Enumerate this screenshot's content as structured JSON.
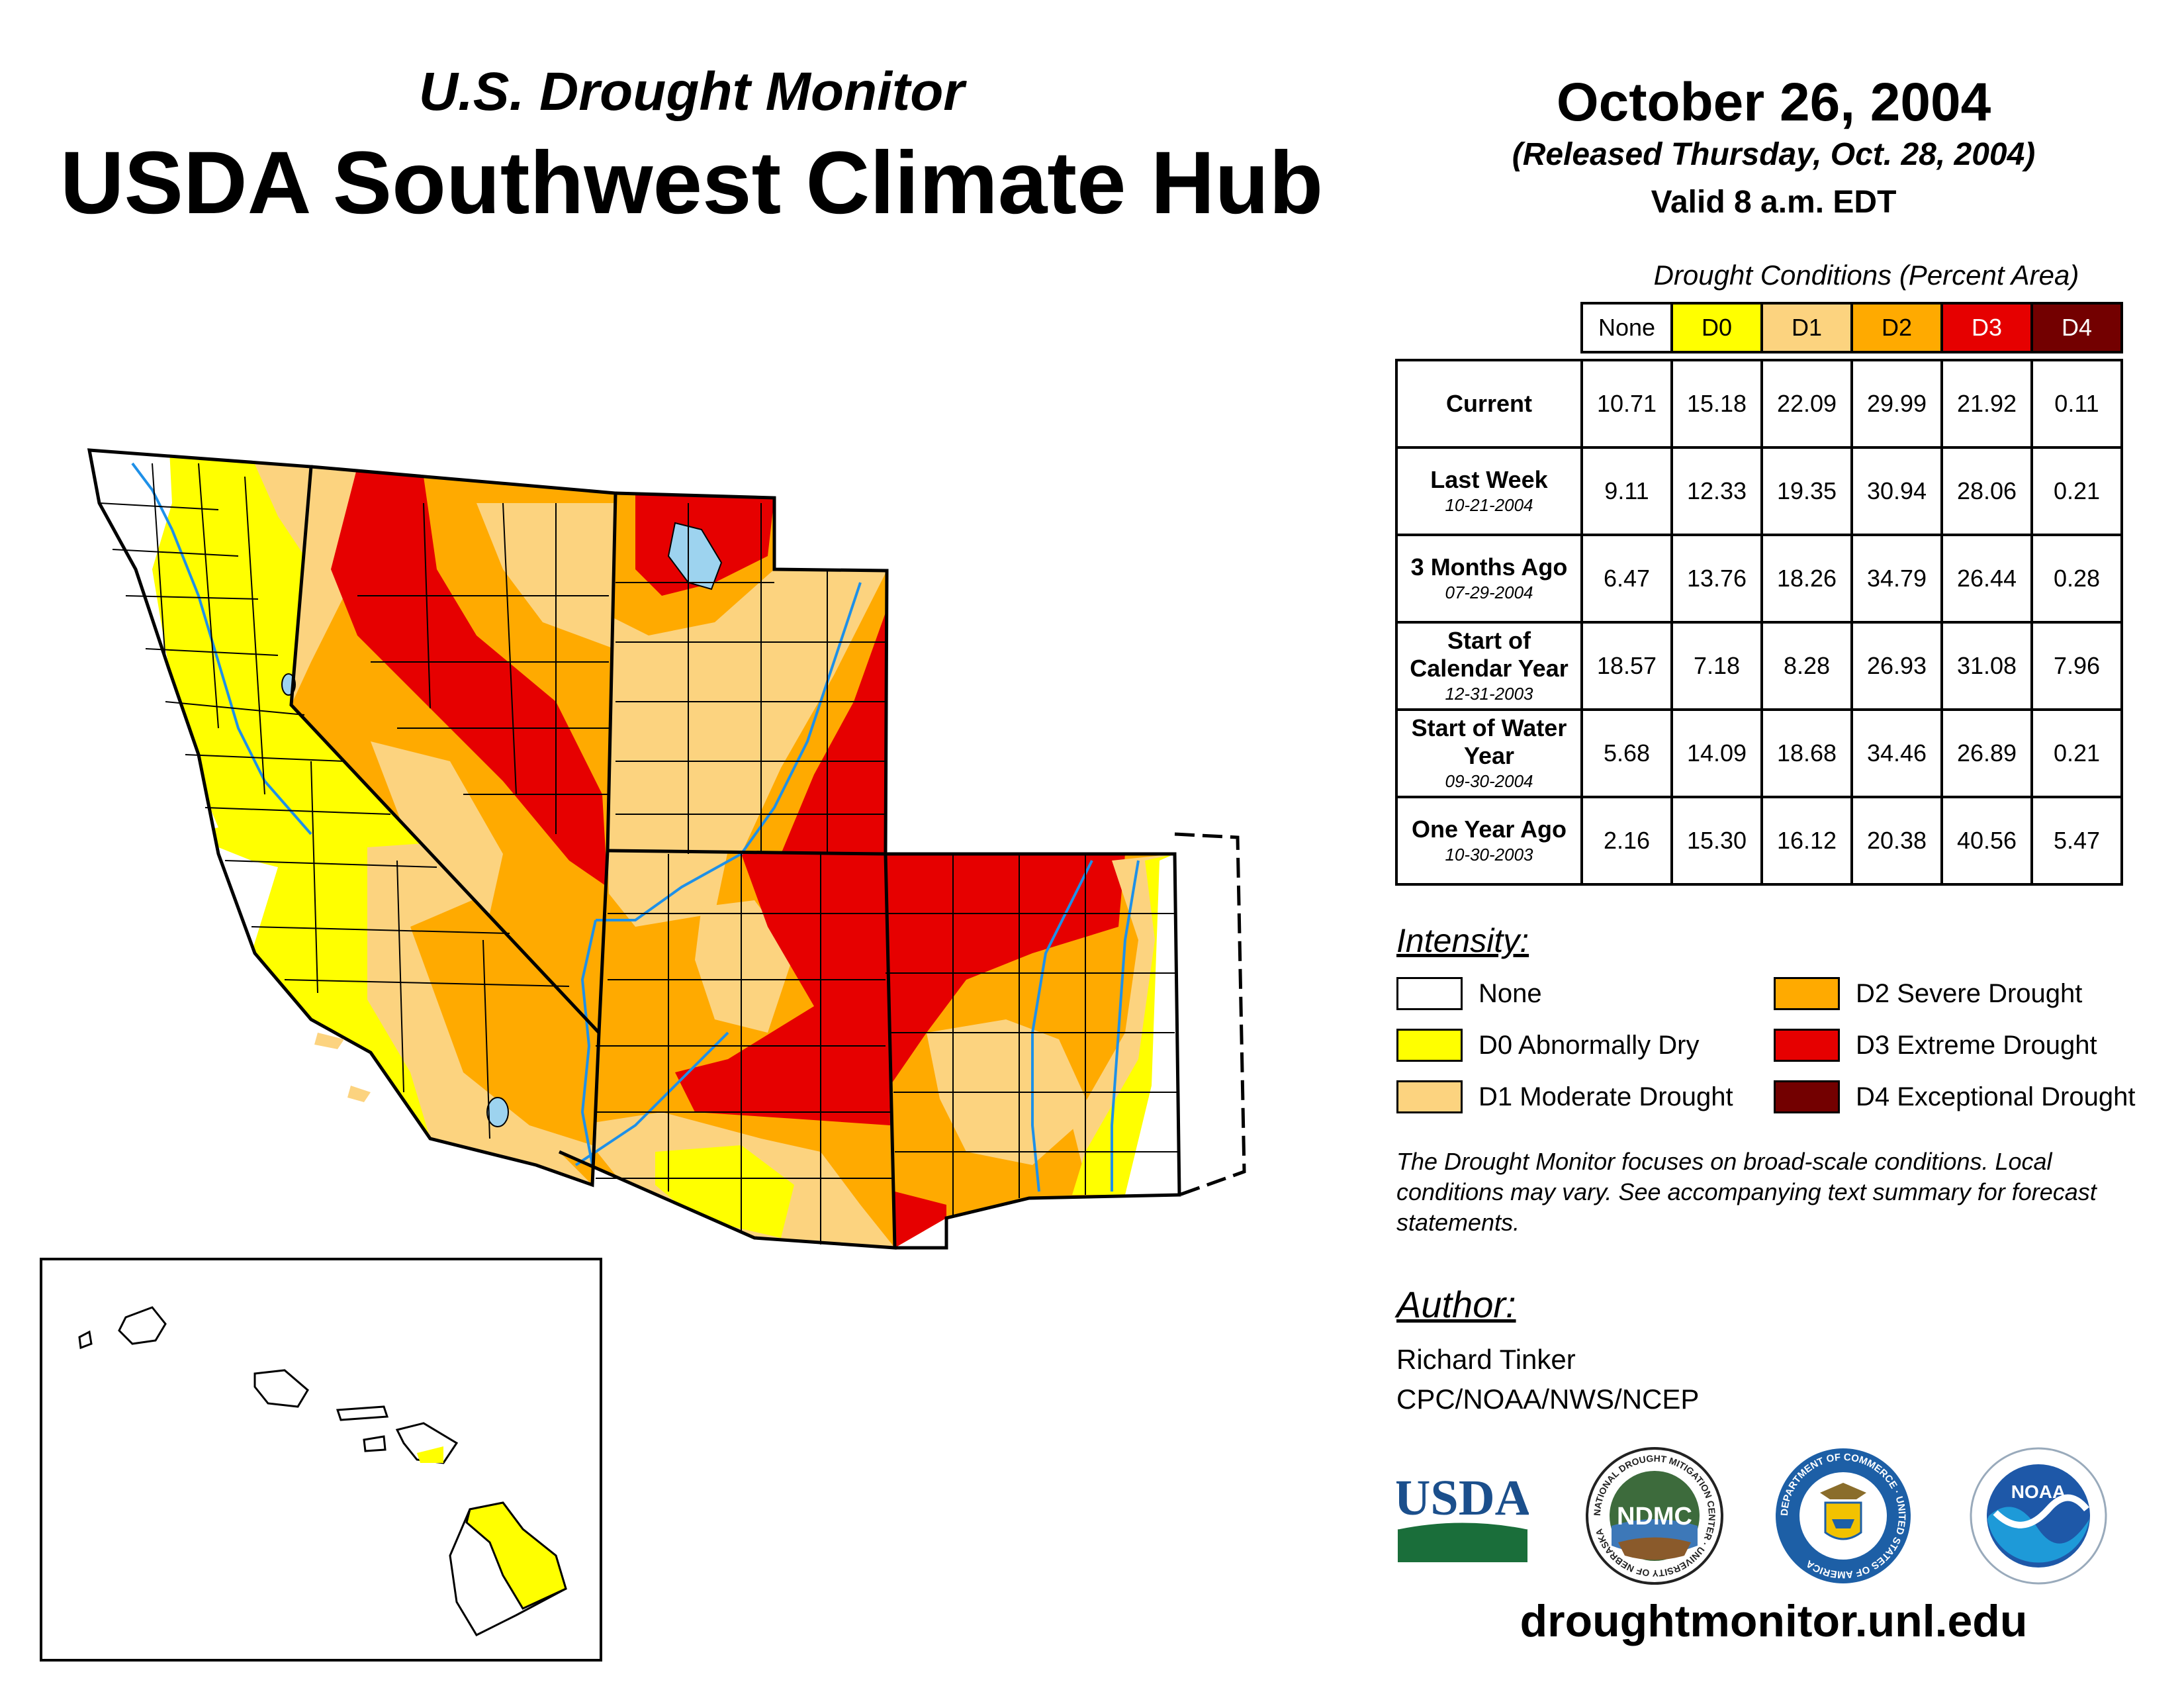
{
  "header": {
    "subtitle": "U.S. Drought Monitor",
    "title": "USDA Southwest Climate Hub",
    "date": "October 26, 2004",
    "released": "(Released Thursday, Oct. 28, 2004)",
    "valid": "Valid 8 a.m. EDT"
  },
  "table": {
    "caption": "Drought Conditions (Percent Area)",
    "columns": [
      "None",
      "D0",
      "D1",
      "D2",
      "D3",
      "D4"
    ],
    "rows": [
      {
        "label": "Current",
        "date": "",
        "values": [
          "10.71",
          "15.18",
          "22.09",
          "29.99",
          "21.92",
          "0.11"
        ]
      },
      {
        "label": "Last Week",
        "date": "10-21-2004",
        "values": [
          "9.11",
          "12.33",
          "19.35",
          "30.94",
          "28.06",
          "0.21"
        ]
      },
      {
        "label": "3 Months Ago",
        "date": "07-29-2004",
        "values": [
          "6.47",
          "13.76",
          "18.26",
          "34.79",
          "26.44",
          "0.28"
        ]
      },
      {
        "label": "Start of Calendar Year",
        "date": "12-31-2003",
        "values": [
          "18.57",
          "7.18",
          "8.28",
          "26.93",
          "31.08",
          "7.96"
        ]
      },
      {
        "label": "Start of Water Year",
        "date": "09-30-2004",
        "values": [
          "5.68",
          "14.09",
          "18.68",
          "34.46",
          "26.89",
          "0.21"
        ]
      },
      {
        "label": "One Year Ago",
        "date": "10-30-2003",
        "values": [
          "2.16",
          "15.30",
          "16.12",
          "20.38",
          "40.56",
          "5.47"
        ]
      }
    ]
  },
  "legend": {
    "heading": "Intensity:",
    "items": [
      {
        "label": "None",
        "color": "#ffffff"
      },
      {
        "label": "D0 Abnormally Dry",
        "color": "#ffff00"
      },
      {
        "label": "D1 Moderate Drought",
        "color": "#fcd37f"
      },
      {
        "label": "D2 Severe Drought",
        "color": "#ffaa00"
      },
      {
        "label": "D3 Extreme Drought",
        "color": "#e60000"
      },
      {
        "label": "D4 Exceptional Drought",
        "color": "#730000"
      }
    ]
  },
  "note": "The Drought Monitor focuses on broad-scale conditions. Local conditions may vary. See accompanying text summary for forecast statements.",
  "author": {
    "heading": "Author:",
    "name": "Richard Tinker",
    "org": "CPC/NOAA/NWS/NCEP"
  },
  "logos": {
    "usda": "USDA",
    "ndmc": "NDMC",
    "ndmc_ring": "NATIONAL DROUGHT MITIGATION CENTER · UNIVERSITY OF NEBRASKA",
    "doc_ring": "DEPARTMENT OF COMMERCE · UNITED STATES OF AMERICA",
    "noaa": "NOAA"
  },
  "url": "droughtmonitor.unl.edu",
  "colors": {
    "none": "#ffffff",
    "d0": "#ffff00",
    "d1": "#fcd37f",
    "d2": "#ffaa00",
    "d3": "#e60000",
    "d4": "#730000",
    "water": "#9dd3ef",
    "river": "#1e90e8"
  }
}
